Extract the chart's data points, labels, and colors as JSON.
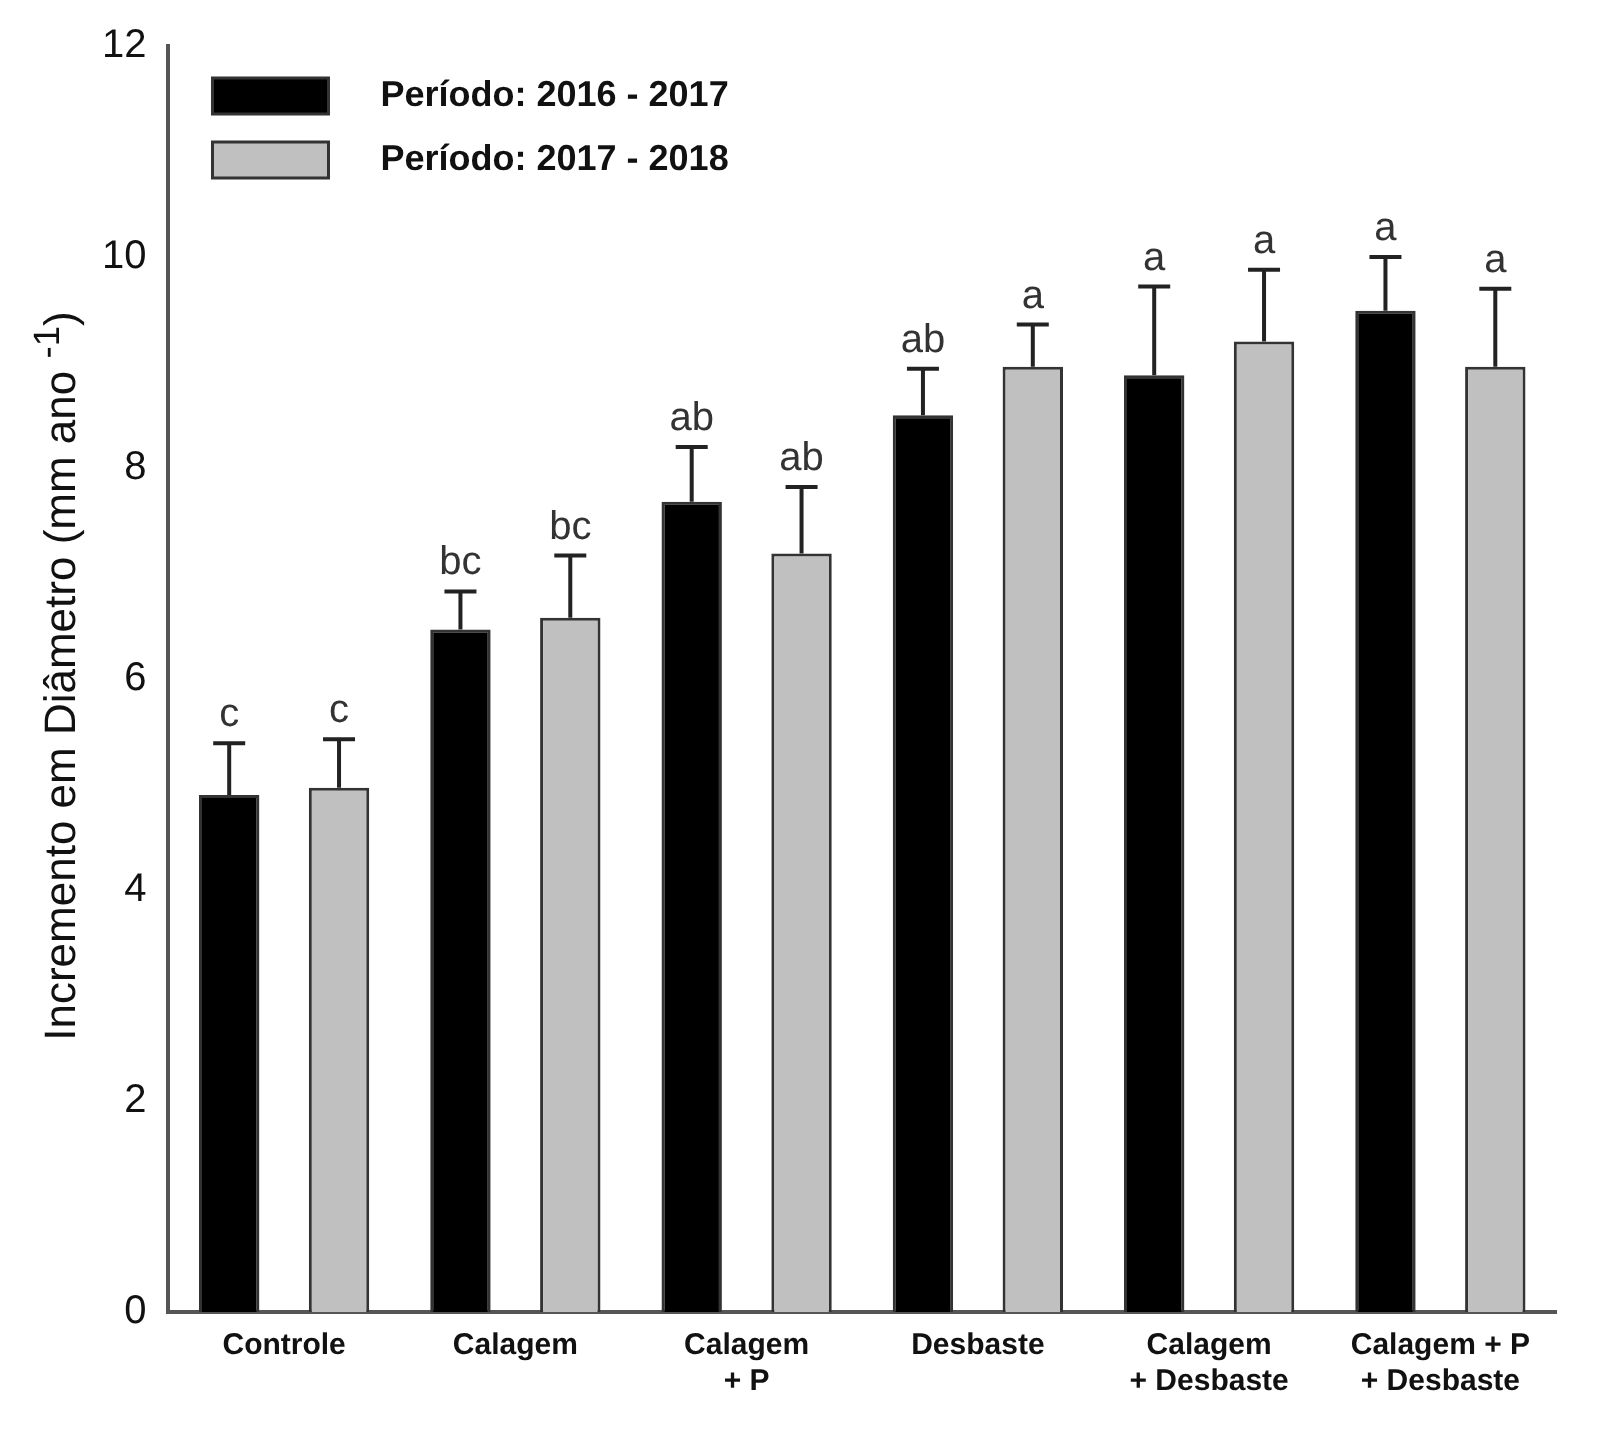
{
  "chart_data": {
    "type": "bar",
    "ylabel": "Incremento em Diâmetro (mm ano $^{-1}$)",
    "categories": [
      "Controle",
      "Calagem",
      "Calagem\n+ P",
      "Desbaste",
      "Calagem\n+ Desbaste",
      "Calagem + P\n+ Desbaste"
    ],
    "series": [
      {
        "name": "Período: 2016 - 2017",
        "color": "#000000",
        "values": [
          4.9,
          6.47,
          7.68,
          8.5,
          8.88,
          9.49
        ],
        "errors": [
          [
            4.9,
            5.39
          ],
          [
            6.47,
            6.83
          ],
          [
            7.68,
            8.2
          ],
          [
            8.5,
            8.94
          ],
          [
            8.88,
            9.72
          ],
          [
            9.49,
            10.0
          ]
        ],
        "value_labels": [
          "c",
          "bc",
          "ab",
          "ab",
          "a",
          "a"
        ]
      },
      {
        "name": "Período: 2017 - 2018",
        "color": "#c0c0c0",
        "values": [
          4.97,
          6.58,
          7.19,
          8.96,
          9.2,
          8.96
        ],
        "errors": [
          [
            4.97,
            5.43
          ],
          [
            6.58,
            7.17
          ],
          [
            7.19,
            7.82
          ],
          [
            8.96,
            9.36
          ],
          [
            9.2,
            9.88
          ],
          [
            8.96,
            9.7
          ]
        ],
        "value_labels": [
          "c",
          "bc",
          "ab",
          "a",
          "a",
          "a"
        ]
      }
    ],
    "ylim": [
      0,
      12
    ],
    "yticks": [
      0,
      2,
      4,
      6,
      8,
      10,
      12
    ],
    "grid": false,
    "legend": "top left"
  }
}
